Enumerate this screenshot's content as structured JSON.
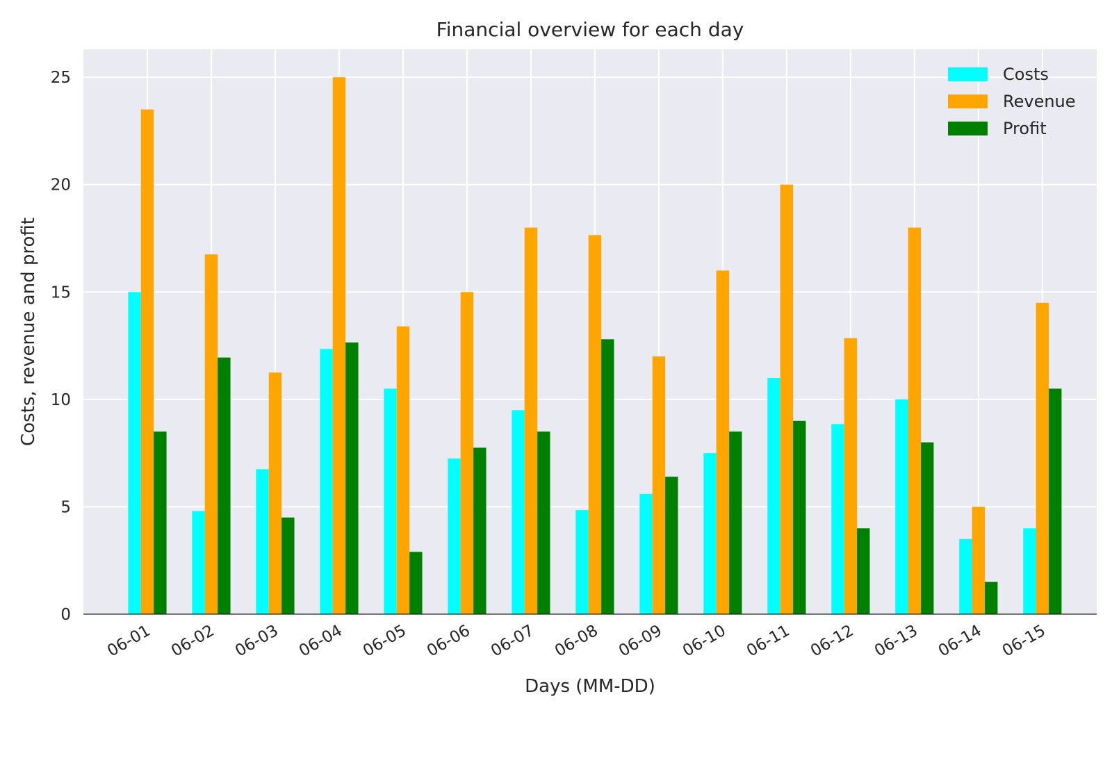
{
  "chart_data": {
    "type": "bar",
    "title": "Financial overview for each day",
    "xlabel": "Days (MM-DD)",
    "ylabel": "Costs, revenue and profit",
    "categories": [
      "06-01",
      "06-02",
      "06-03",
      "06-04",
      "06-05",
      "06-06",
      "06-07",
      "06-08",
      "06-09",
      "06-10",
      "06-11",
      "06-12",
      "06-13",
      "06-14",
      "06-15"
    ],
    "series": [
      {
        "name": "Costs",
        "color": "#00ffff",
        "values": [
          15,
          4.8,
          6.75,
          12.35,
          10.5,
          7.25,
          9.5,
          4.85,
          5.6,
          7.5,
          11,
          8.85,
          10,
          3.5,
          4
        ]
      },
      {
        "name": "Revenue",
        "color": "#ffa500",
        "values": [
          23.5,
          16.75,
          11.25,
          25,
          13.4,
          15,
          18,
          17.65,
          12,
          16,
          20,
          12.85,
          18,
          5,
          14.5
        ]
      },
      {
        "name": "Profit",
        "color": "#008000",
        "values": [
          8.5,
          11.95,
          4.5,
          12.65,
          2.9,
          7.75,
          8.5,
          12.8,
          6.4,
          8.5,
          9,
          4,
          8,
          1.5,
          10.5
        ]
      }
    ],
    "ylim": [
      0,
      26.3
    ],
    "yticks": [
      0,
      5,
      10,
      15,
      20,
      25
    ],
    "grid": true,
    "legend_position": "top-right",
    "background_color": "#eaeaf2",
    "grid_color": "#ffffff"
  }
}
